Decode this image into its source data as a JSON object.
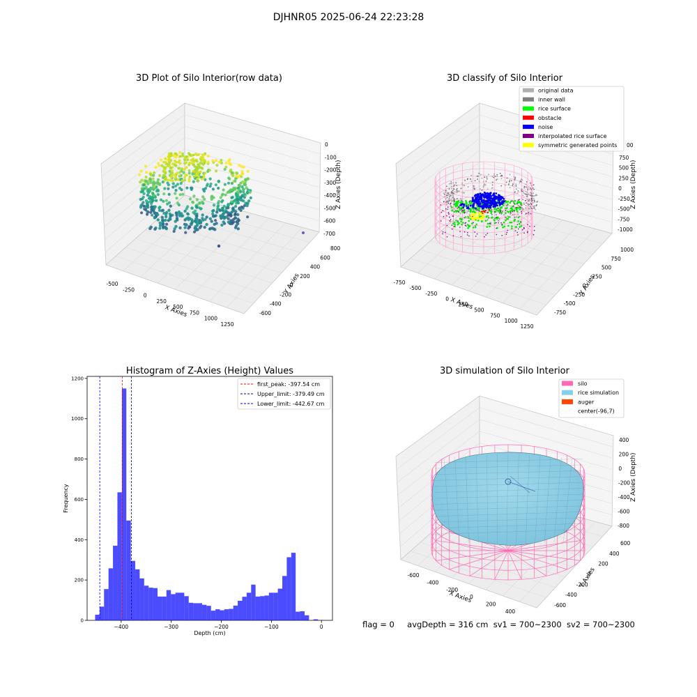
{
  "figure": {
    "suptitle": "DJHNR05 2025-06-24 22:23:28",
    "status": {
      "flag": "flag = 0",
      "avg_depth": "avgDepth = 316 cm",
      "sv1": "sv1 = 700~2300",
      "sv2": "sv2 = 700~2300"
    }
  },
  "chart_data": [
    {
      "type": "scatter3d",
      "title": "3D Plot of Silo Interior(row data)",
      "xlabel": "X Axies",
      "ylabel": "Y Axies",
      "zlabel": "Z Axies (Depth)",
      "x_ticks": [
        "-500",
        "-250",
        "0",
        "250",
        "500",
        "750",
        "1000",
        "1250"
      ],
      "y_ticks": [
        "-600",
        "-400",
        "-200",
        "0",
        "200",
        "400",
        "600",
        "800"
      ],
      "z_ticks": [
        "0",
        "-100",
        "-200",
        "-300",
        "-400",
        "-500",
        "-600",
        "-700"
      ],
      "colormap": "viridis"
    },
    {
      "type": "scatter3d",
      "title": "3D classify of Silo Interior",
      "xlabel": "X Axies",
      "ylabel": "Y Axies",
      "zlabel": "Z Axies (Depth)",
      "x_ticks": [
        "-750",
        "-500",
        "-250",
        "0",
        "250",
        "500",
        "750",
        "1000",
        "1250"
      ],
      "y_ticks": [
        "-750",
        "-500",
        "-250",
        "0",
        "250",
        "500",
        "750",
        "1000"
      ],
      "z_ticks": [
        "750",
        "500",
        "250",
        "0",
        "-250",
        "-500",
        "-750",
        "-1000"
      ],
      "z_ticks_partial_top": "00",
      "legend_position": "top-right",
      "legend": [
        {
          "label": "original data",
          "color": "#b0b0b0"
        },
        {
          "label": "inner wall",
          "color": "#808080"
        },
        {
          "label": "rice surface",
          "color": "#00ff00"
        },
        {
          "label": "obstacle",
          "color": "#ff0000"
        },
        {
          "label": "noise",
          "color": "#0000ff"
        },
        {
          "label": "interpolated rice surface",
          "color": "#800080"
        },
        {
          "label": "symmetric generated points",
          "color": "#ffff00"
        }
      ]
    },
    {
      "type": "bar",
      "title": "Histogram of Z-Axies (Height) Values",
      "xlabel": "Depth (cm)",
      "ylabel": "Frequency",
      "xlim": [
        -468,
        22
      ],
      "ylim": [
        0,
        1210
      ],
      "x_ticks": [
        -400,
        -300,
        -200,
        -100,
        0
      ],
      "y_ticks": [
        0,
        200,
        400,
        600,
        800,
        1000,
        1200
      ],
      "bar_color": "#0000ff",
      "bin_start": -452,
      "bin_width": 8.9,
      "values": [
        28,
        68,
        155,
        258,
        370,
        635,
        1150,
        495,
        295,
        253,
        208,
        172,
        162,
        160,
        118,
        118,
        150,
        130,
        137,
        137,
        120,
        87,
        85,
        85,
        77,
        72,
        48,
        55,
        50,
        55,
        57,
        73,
        97,
        117,
        137,
        177,
        118,
        120,
        123,
        137,
        137,
        157,
        220,
        313,
        335,
        43,
        45,
        25,
        0,
        5,
        0
      ],
      "lines": [
        {
          "name": "first_peak: -397.54 cm",
          "x": -397.54,
          "color": "#ff0000"
        },
        {
          "name": "Upper_limit: -379.49 cm",
          "x": -379.49,
          "color": "#00008b"
        },
        {
          "name": "Lower_limit: -442.67 cm",
          "x": -442.67,
          "color": "#0000ff"
        }
      ],
      "legend_position": "top-right"
    },
    {
      "type": "surface3d",
      "title": "3D simulation of Silo Interior",
      "xlabel": "X Axies",
      "ylabel": "Y Axies",
      "zlabel": "Z Axies (Depth)",
      "x_ticks": [
        "-600",
        "-400",
        "-200",
        "0",
        "200",
        "400"
      ],
      "y_ticks": [
        "-600",
        "-400",
        "-200",
        "0",
        "200",
        "400",
        "600"
      ],
      "z_ticks": [
        "400",
        "200",
        "0",
        "-200",
        "-400",
        "-600",
        "-800"
      ],
      "legend_position": "top-right",
      "legend": [
        {
          "label": "silo",
          "color": "#ff69b4"
        },
        {
          "label": "rice simulation",
          "color": "#87ceeb"
        },
        {
          "label": "auger",
          "color": "#ff4500"
        },
        {
          "label": "center(-96,7)",
          "color": "#ffffff"
        }
      ]
    }
  ]
}
